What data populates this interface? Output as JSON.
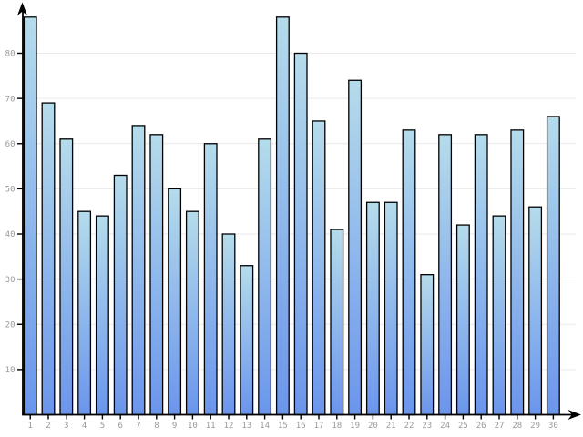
{
  "chart_data": {
    "type": "bar",
    "title": "",
    "xlabel": "",
    "ylabel": "",
    "categories": [
      "1",
      "2",
      "3",
      "4",
      "5",
      "6",
      "7",
      "8",
      "9",
      "10",
      "11",
      "12",
      "13",
      "14",
      "15",
      "16",
      "17",
      "18",
      "19",
      "20",
      "21",
      "22",
      "23",
      "24",
      "25",
      "26",
      "27",
      "28",
      "29",
      "30"
    ],
    "values": [
      88,
      69,
      61,
      45,
      44,
      53,
      64,
      62,
      50,
      45,
      60,
      40,
      33,
      61,
      88,
      80,
      65,
      41,
      74,
      47,
      47,
      63,
      31,
      62,
      42,
      62,
      44,
      63,
      46,
      66
    ],
    "ylim": [
      0,
      90
    ],
    "yticks": [
      10,
      20,
      30,
      40,
      50,
      60,
      70,
      80
    ],
    "ytick_labels": [
      "10",
      "20",
      "30",
      "40",
      "50",
      "60",
      "70",
      "80"
    ],
    "grid": true,
    "legend": false,
    "legend_position": "none",
    "icons": {
      "y_axis_arrow": "up-arrowhead",
      "x_axis_arrow": "right-arrowhead"
    },
    "colors": {
      "background": "#ffffff",
      "bar_gradient_top": "#b5dceb",
      "bar_gradient_bottom": "#6b95ec",
      "bar_border": "#000000",
      "gridline": "#e9e9e9",
      "axis": "#000000",
      "tick_label": "#999999"
    }
  }
}
